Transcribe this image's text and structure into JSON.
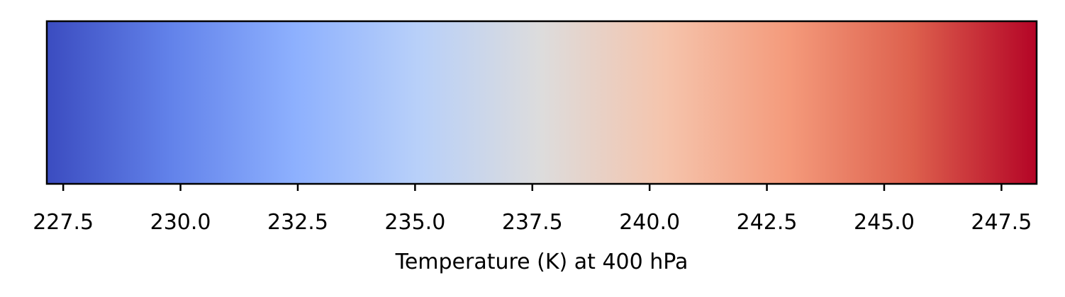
{
  "chart_data": {
    "type": "colorbar",
    "orientation": "horizontal",
    "colormap": "coolwarm",
    "vmin": 227.15,
    "vmax": 248.25,
    "ticks": [
      227.5,
      230.0,
      232.5,
      235.0,
      237.5,
      240.0,
      242.5,
      245.0,
      247.5
    ],
    "tick_labels": [
      "227.5",
      "230.0",
      "232.5",
      "235.0",
      "237.5",
      "240.0",
      "242.5",
      "245.0",
      "247.5"
    ],
    "xlabel": "Temperature (K) at 400 hPa",
    "colors": [
      "#3b4cc0",
      "#6282ea",
      "#8db0fe",
      "#b8d0f9",
      "#dddcdc",
      "#f5c4ac",
      "#f49a7b",
      "#dd604d",
      "#b40426"
    ]
  }
}
